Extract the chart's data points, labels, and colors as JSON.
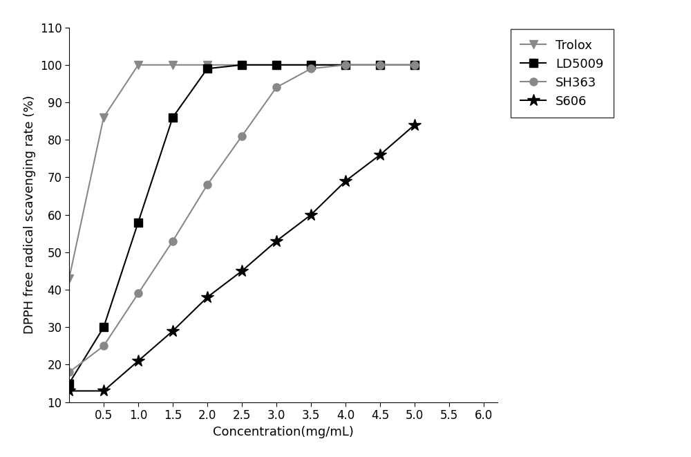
{
  "trolox_x": [
    0.0,
    0.5,
    1.0,
    1.5,
    2.0,
    2.5,
    3.0,
    3.5,
    4.0,
    4.5,
    5.0
  ],
  "trolox_y": [
    43,
    86,
    100,
    100,
    100,
    100,
    100,
    100,
    100,
    100,
    100
  ],
  "ld5009_x": [
    0.0,
    0.5,
    1.0,
    1.5,
    2.0,
    2.5,
    3.0,
    3.5,
    4.0,
    4.5,
    5.0
  ],
  "ld5009_y": [
    15,
    30,
    58,
    86,
    99,
    100,
    100,
    100,
    100,
    100,
    100
  ],
  "sh363_x": [
    0.0,
    0.5,
    1.0,
    1.5,
    2.0,
    2.5,
    3.0,
    3.5,
    4.0,
    4.5,
    5.0
  ],
  "sh363_y": [
    18,
    25,
    39,
    53,
    68,
    81,
    94,
    99,
    100,
    100,
    100
  ],
  "s606_x": [
    0.0,
    0.5,
    1.0,
    1.5,
    2.0,
    2.5,
    3.0,
    3.5,
    4.0,
    4.5,
    5.0
  ],
  "s606_y": [
    13,
    13,
    21,
    29,
    38,
    45,
    53,
    60,
    69,
    76,
    84
  ],
  "xlabel": "Concentration(mg/mL)",
  "ylabel": "DPPH free radical scavenging rate (%)",
  "xlim": [
    0.0,
    6.2
  ],
  "ylim": [
    10,
    110
  ],
  "xticks": [
    0.5,
    1.0,
    1.5,
    2.0,
    2.5,
    3.0,
    3.5,
    4.0,
    4.5,
    5.0,
    5.5,
    6.0
  ],
  "yticks": [
    10,
    20,
    30,
    40,
    50,
    60,
    70,
    80,
    90,
    100,
    110
  ],
  "gray_color": "#888888",
  "black_color": "#000000",
  "background_color": "#ffffff",
  "legend_labels": [
    "Trolox",
    "LD5009",
    "SH363",
    "S606"
  ]
}
